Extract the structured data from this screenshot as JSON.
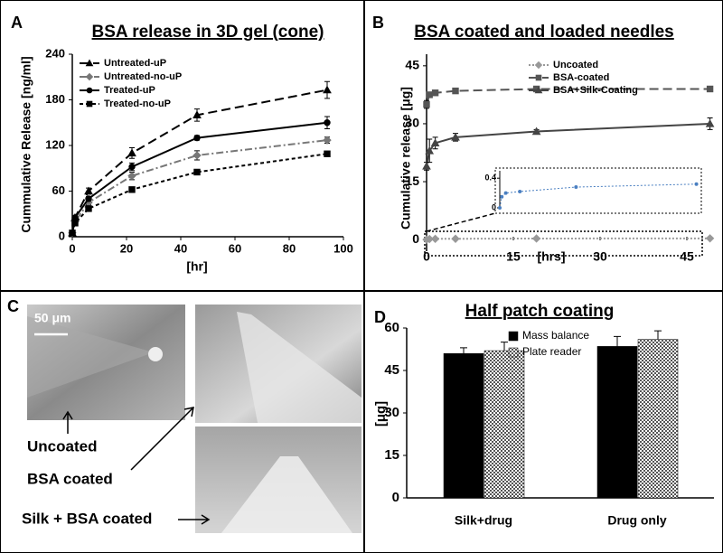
{
  "chart_data": [
    {
      "type": "line",
      "title": "BSA  release in 3D gel (cone)",
      "x_label": "[hr]",
      "y_label": "Cummulative Release [ng/ml]",
      "x": [
        0,
        1,
        6,
        22,
        46,
        94
      ],
      "xlim": [
        0,
        100
      ],
      "xticks": [
        0,
        20,
        40,
        60,
        80,
        100
      ],
      "ylim": [
        0,
        240
      ],
      "yticks": [
        0,
        60,
        120,
        180,
        240
      ],
      "legend": "upper left",
      "series": [
        {
          "name": "Untreated-uP",
          "color": "#000000",
          "dash": "long",
          "marker": "triangle",
          "values": [
            5,
            25,
            60,
            110,
            160,
            193
          ],
          "errors": [
            0,
            2,
            4,
            7,
            8,
            11
          ]
        },
        {
          "name": "Untreated-no-uP",
          "color": "#777777",
          "dash": "dashdot",
          "marker": "diamond",
          "values": [
            5,
            20,
            45,
            80,
            107,
            127
          ],
          "errors": [
            0,
            2,
            3,
            5,
            6,
            4
          ]
        },
        {
          "name": "Treated-uP",
          "color": "#000000",
          "dash": "solid",
          "marker": "circle",
          "values": [
            5,
            25,
            50,
            92,
            130,
            150
          ],
          "errors": [
            0,
            2,
            3,
            5,
            3,
            8
          ]
        },
        {
          "name": "Treated-no-uP",
          "color": "#000000",
          "dash": "short",
          "marker": "square",
          "values": [
            5,
            18,
            37,
            62,
            85,
            109
          ],
          "errors": [
            0,
            1,
            2,
            2,
            3,
            2
          ]
        }
      ]
    },
    {
      "type": "line",
      "title": "BSA coated and loaded needles",
      "x_label": "[hrs]",
      "y_label": "Cumulative release [μg]",
      "x": [
        0,
        0.5,
        1.5,
        5,
        19,
        49
      ],
      "xlim": [
        0,
        50
      ],
      "xticks": [
        0,
        15,
        30,
        45
      ],
      "ylim": [
        -3,
        48
      ],
      "yticks": [
        0,
        15,
        30,
        45
      ],
      "legend": "upper right",
      "series": [
        {
          "name": "Uncoated",
          "color": "#999999",
          "dash": "dotted",
          "marker": "diamond",
          "values": [
            0,
            0.15,
            0.2,
            0.22,
            0.28,
            0.32
          ]
        },
        {
          "name": "BSA-coated",
          "color": "#555555",
          "dash": "long",
          "marker": "square",
          "values": [
            35,
            37.5,
            38,
            38.5,
            39,
            39
          ],
          "errors": [
            1,
            0.5,
            0.5,
            0.5,
            0.5,
            0.5
          ]
        },
        {
          "name": "BSA+Silk-Coating",
          "color": "#444444",
          "dash": "solid",
          "marker": "triangle",
          "values": [
            19,
            23,
            25,
            26.5,
            28,
            30
          ],
          "errors": [
            1,
            3,
            1.5,
            1,
            0.5,
            1.5
          ]
        }
      ],
      "inset": {
        "series": 0,
        "color": "#4a7fc1",
        "ylim": [
          0,
          0.5
        ],
        "yticks": [
          0,
          0.4
        ]
      }
    },
    {
      "type": "bar",
      "title": "Half patch coating",
      "y_label": "[μg]",
      "categories": [
        "Silk+drug",
        "Drug only"
      ],
      "ylim": [
        0,
        60
      ],
      "yticks": [
        0,
        15,
        30,
        45,
        60
      ],
      "legend": "top",
      "series": [
        {
          "name": "Mass balance",
          "color": "#000000",
          "fill": "solid",
          "values": [
            51,
            53.5
          ],
          "errors": [
            2,
            3.5
          ]
        },
        {
          "name": "Plate reader",
          "color": "#555555",
          "fill": "checker",
          "values": [
            52,
            56
          ],
          "errors": [
            3,
            3
          ]
        }
      ]
    }
  ],
  "panel_letters": [
    "A",
    "B",
    "C",
    "D"
  ],
  "micrographs": {
    "scale_bar": "50 μm",
    "labels": [
      "Uncoated",
      "BSA coated",
      "Silk + BSA coated"
    ]
  }
}
